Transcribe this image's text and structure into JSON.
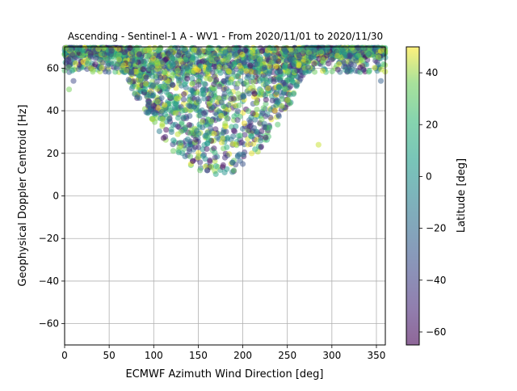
{
  "chart_data": {
    "type": "scatter",
    "title": "Ascending - Sentinel-1 A - WV1 - From 2020/11/01 to 2020/11/30",
    "xlabel": "ECMWF Azimuth Wind Direction [deg]",
    "ylabel": "Geophysical Doppler Centroid [Hz]",
    "xlim": [
      0,
      360
    ],
    "ylim": [
      -70,
      70
    ],
    "xticks": [
      "0",
      "50",
      "100",
      "150",
      "200",
      "250",
      "300",
      "350"
    ],
    "yticks": [
      "60",
      "40",
      "20",
      "0",
      "−20",
      "−40",
      "−60"
    ],
    "grid": true,
    "colorbar": {
      "label": "Latitude [deg]",
      "min": -65,
      "max": 50,
      "ticks": [
        "40",
        "20",
        "0",
        "−20",
        "−40",
        "−60"
      ]
    },
    "point_alpha": 0.5,
    "point_cloud_description_sample": [
      [
        20,
        66,
        10
      ],
      [
        40,
        64,
        -30
      ],
      [
        60,
        62,
        20
      ],
      [
        75,
        58,
        -40
      ],
      [
        90,
        50,
        0
      ],
      [
        100,
        42,
        -50
      ],
      [
        110,
        36,
        30
      ],
      [
        120,
        30,
        -20
      ],
      [
        130,
        25,
        10
      ],
      [
        140,
        22,
        -45
      ],
      [
        150,
        18,
        40
      ],
      [
        160,
        12,
        -30
      ],
      [
        170,
        14,
        5
      ],
      [
        180,
        18,
        -50
      ],
      [
        190,
        12,
        20
      ],
      [
        200,
        15,
        -35
      ],
      [
        210,
        20,
        45
      ],
      [
        220,
        26,
        -10
      ],
      [
        230,
        32,
        15
      ],
      [
        240,
        38,
        -40
      ],
      [
        250,
        45,
        35
      ],
      [
        260,
        52,
        -25
      ],
      [
        270,
        58,
        0
      ],
      [
        280,
        62,
        -55
      ],
      [
        290,
        64,
        25
      ],
      [
        300,
        66,
        -15
      ],
      [
        310,
        65,
        30
      ],
      [
        320,
        66,
        -45
      ],
      [
        340,
        67,
        10
      ],
      [
        355,
        54,
        -30
      ],
      [
        10,
        54,
        -40
      ],
      [
        5,
        50,
        25
      ],
      [
        285,
        24,
        40
      ],
      [
        355,
        68,
        45
      ]
    ]
  }
}
